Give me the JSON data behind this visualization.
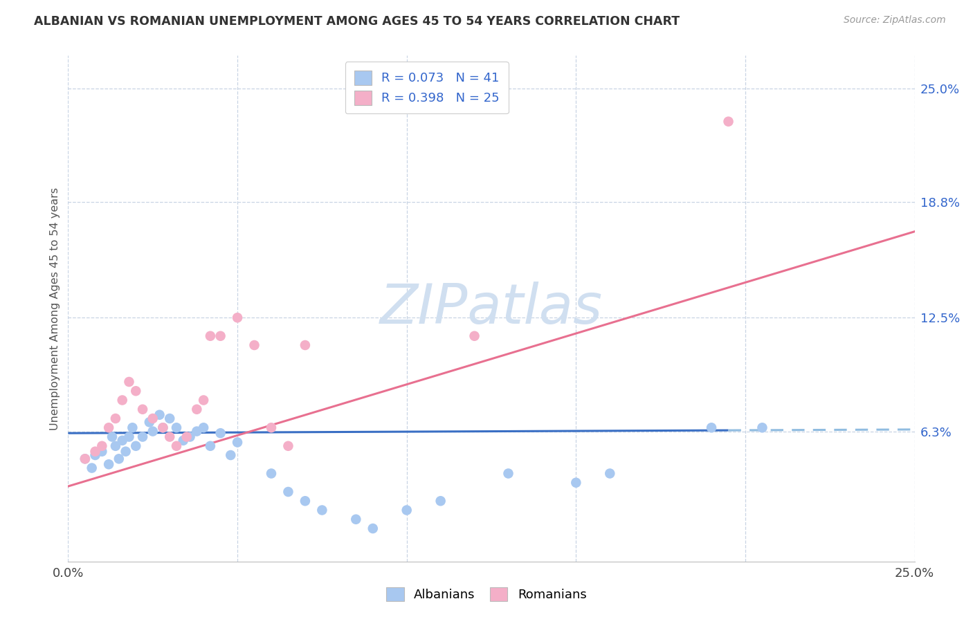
{
  "title": "ALBANIAN VS ROMANIAN UNEMPLOYMENT AMONG AGES 45 TO 54 YEARS CORRELATION CHART",
  "source": "Source: ZipAtlas.com",
  "ylabel": "Unemployment Among Ages 45 to 54 years",
  "xlim": [
    0.0,
    0.25
  ],
  "ylim": [
    -0.008,
    0.268
  ],
  "ytick_labels": [
    "25.0%",
    "18.8%",
    "12.5%",
    "6.3%"
  ],
  "ytick_values": [
    0.25,
    0.188,
    0.125,
    0.063
  ],
  "albanian_R": 0.073,
  "albanian_N": 41,
  "romanian_R": 0.398,
  "romanian_N": 25,
  "albanian_color": "#a8c8f0",
  "romanian_color": "#f4afc8",
  "albanian_line_color": "#3a6fc4",
  "romanian_line_color": "#e87090",
  "albanian_dashed_color": "#90bce0",
  "watermark_color": "#d0dff0",
  "background_color": "#ffffff",
  "grid_color": "#c8d4e4",
  "legend_R_color": "#3366cc",
  "albanian_line_x0": 0.0,
  "albanian_line_x_solid_end": 0.195,
  "albanian_line_x1": 0.25,
  "albanian_line_y0": 0.062,
  "albanian_line_y1": 0.064,
  "romanian_line_x0": 0.0,
  "romanian_line_x1": 0.25,
  "romanian_line_y0": 0.033,
  "romanian_line_y1": 0.172,
  "albanian_x": [
    0.005,
    0.007,
    0.008,
    0.01,
    0.012,
    0.013,
    0.014,
    0.015,
    0.016,
    0.017,
    0.018,
    0.019,
    0.02,
    0.022,
    0.024,
    0.025,
    0.027,
    0.028,
    0.03,
    0.032,
    0.034,
    0.036,
    0.038,
    0.04,
    0.042,
    0.045,
    0.048,
    0.05,
    0.06,
    0.065,
    0.07,
    0.075,
    0.085,
    0.09,
    0.1,
    0.11,
    0.13,
    0.15,
    0.16,
    0.19,
    0.205
  ],
  "albanian_y": [
    0.048,
    0.043,
    0.05,
    0.052,
    0.045,
    0.06,
    0.055,
    0.048,
    0.058,
    0.052,
    0.06,
    0.065,
    0.055,
    0.06,
    0.068,
    0.063,
    0.072,
    0.065,
    0.07,
    0.065,
    0.058,
    0.06,
    0.063,
    0.065,
    0.055,
    0.062,
    0.05,
    0.057,
    0.04,
    0.03,
    0.025,
    0.02,
    0.015,
    0.01,
    0.02,
    0.025,
    0.04,
    0.035,
    0.04,
    0.065,
    0.065
  ],
  "romanian_x": [
    0.005,
    0.008,
    0.01,
    0.012,
    0.014,
    0.016,
    0.018,
    0.02,
    0.022,
    0.025,
    0.028,
    0.03,
    0.032,
    0.035,
    0.038,
    0.04,
    0.042,
    0.045,
    0.05,
    0.055,
    0.06,
    0.065,
    0.07,
    0.12,
    0.195
  ],
  "romanian_y": [
    0.048,
    0.052,
    0.055,
    0.065,
    0.07,
    0.08,
    0.09,
    0.085,
    0.075,
    0.07,
    0.065,
    0.06,
    0.055,
    0.06,
    0.075,
    0.08,
    0.115,
    0.115,
    0.125,
    0.11,
    0.065,
    0.055,
    0.11,
    0.115,
    0.232
  ]
}
